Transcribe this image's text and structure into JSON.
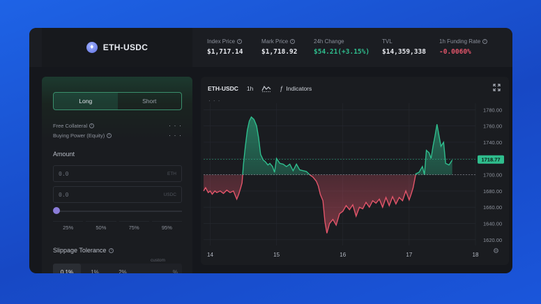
{
  "header": {
    "pair": "ETH-USDC",
    "stats": [
      {
        "label": "Index Price",
        "value": "$1,717.14",
        "tone": "normal",
        "info": true
      },
      {
        "label": "Mark Price",
        "value": "$1,718.92",
        "tone": "normal",
        "info": true
      },
      {
        "label": "24h Change",
        "value": "$54.21(+3.15%)",
        "tone": "green",
        "info": false
      },
      {
        "label": "TVL",
        "value": "$14,359,338",
        "tone": "normal",
        "info": false
      },
      {
        "label": "1h Funding Rate",
        "value": "-0.0060%",
        "tone": "red",
        "info": true
      }
    ]
  },
  "order": {
    "long_label": "Long",
    "short_label": "Short",
    "free_collateral_label": "Free Collateral",
    "buying_power_label": "Buying Power (Equity)",
    "value_placeholder": "· · ·",
    "amount_title": "Amount",
    "amount_eth_value": "0.0",
    "amount_eth_unit": "ETH",
    "amount_usdc_value": "0.0",
    "amount_usdc_unit": "USDC",
    "slider_fraction": 0,
    "percentages": [
      "25%",
      "50%",
      "75%",
      "95%"
    ],
    "slippage_title": "Slippage Tolerance",
    "slippage_options": [
      "0.1%",
      "1%",
      "2%"
    ],
    "slippage_custom_label": "custom",
    "slippage_unit": "%"
  },
  "chart": {
    "pair": "ETH-USDC",
    "interval": "1h",
    "indicators_label": "Indicators",
    "more": "· · ·"
  },
  "colors": {
    "up": "#2fbd8d",
    "down": "#e3556a",
    "reference": "#c0c4cc",
    "last_price_tag": "#2fbd8d"
  },
  "chart_data": {
    "type": "area",
    "title": "",
    "xlabel": "",
    "ylabel": "",
    "x_ticks": [
      "14",
      "15",
      "16",
      "17",
      "18"
    ],
    "x_range": [
      13.9,
      18.0
    ],
    "ylim": [
      1613,
      1788
    ],
    "y_ticks": [
      1620,
      1640,
      1660,
      1680,
      1700,
      1720,
      1740,
      1760,
      1780
    ],
    "y_tick_labels": [
      "1620.00",
      "1640.00",
      "1660.00",
      "1680.00",
      "1700.00",
      "1720.00",
      "1740.00",
      "1760.00",
      "1780.00"
    ],
    "baseline": 1700,
    "last_price": 1718.77,
    "last_price_label": "1718.77",
    "grid": true,
    "series": [
      {
        "x": [
          13.9,
          13.93,
          13.97,
          14.0,
          14.03,
          14.07,
          14.1,
          14.15,
          14.2,
          14.25,
          14.3,
          14.35,
          14.4,
          14.43,
          14.46,
          14.48,
          14.5,
          14.53,
          14.56,
          14.59,
          14.62,
          14.66,
          14.7,
          14.73,
          14.76,
          14.8,
          14.83,
          14.87,
          14.9,
          14.94,
          14.97,
          15.0,
          15.05,
          15.1,
          15.15,
          15.2,
          15.25,
          15.3,
          15.35,
          15.4,
          15.45,
          15.5,
          15.55,
          15.6,
          15.63,
          15.66,
          15.7,
          15.73,
          15.76,
          15.8,
          15.85,
          15.9,
          15.95,
          16.0,
          16.05,
          16.1,
          16.15,
          16.2,
          16.25,
          16.3,
          16.35,
          16.4,
          16.45,
          16.5,
          16.55,
          16.6,
          16.65,
          16.7,
          16.75,
          16.8,
          16.85,
          16.9,
          16.95,
          17.0,
          17.03,
          17.06,
          17.1,
          17.15,
          17.2,
          17.23,
          17.26,
          17.3,
          17.33,
          17.36,
          17.39,
          17.42,
          17.45,
          17.48,
          17.52,
          17.55,
          17.6,
          17.65
        ],
        "y": [
          1680,
          1684,
          1678,
          1680,
          1676,
          1680,
          1678,
          1680,
          1677,
          1681,
          1678,
          1680,
          1670,
          1676,
          1684,
          1690,
          1712,
          1735,
          1755,
          1766,
          1771,
          1768,
          1760,
          1745,
          1725,
          1718,
          1716,
          1712,
          1714,
          1710,
          1703,
          1720,
          1714,
          1713,
          1710,
          1713,
          1705,
          1713,
          1706,
          1705,
          1704,
          1700,
          1697,
          1692,
          1686,
          1676,
          1668,
          1642,
          1628,
          1640,
          1645,
          1638,
          1652,
          1655,
          1662,
          1657,
          1663,
          1649,
          1660,
          1658,
          1666,
          1660,
          1668,
          1665,
          1670,
          1660,
          1672,
          1662,
          1673,
          1664,
          1672,
          1668,
          1680,
          1669,
          1676,
          1684,
          1701,
          1703,
          1710,
          1700,
          1730,
          1727,
          1720,
          1735,
          1748,
          1762,
          1748,
          1735,
          1740,
          1714,
          1712,
          1718
        ]
      }
    ]
  }
}
